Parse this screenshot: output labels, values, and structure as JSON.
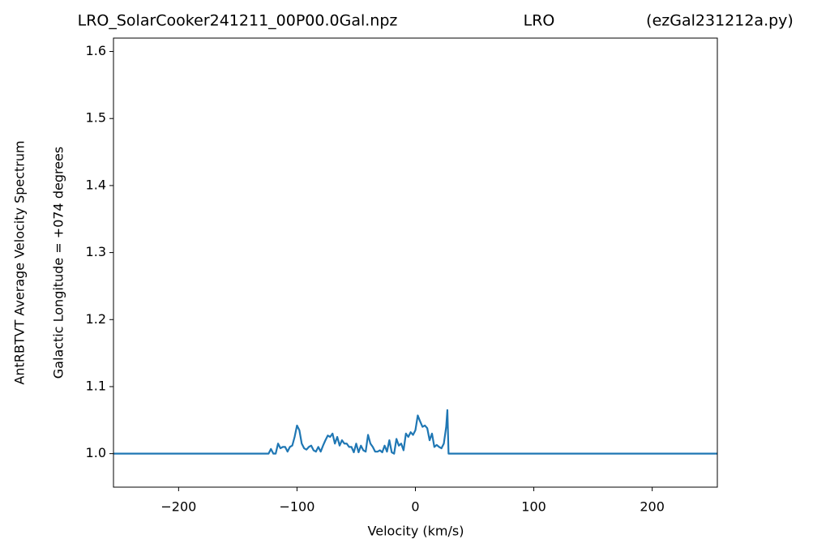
{
  "chart_data": {
    "type": "line",
    "title": [
      "LRO_SolarCooker241211_00P00.0Gal.npz",
      "LRO",
      "(ezGal231212a.py)"
    ],
    "ylabel": [
      "AntRBTVT Average Velocity Spectrum",
      "Galactic Longitude = +074 degrees"
    ],
    "xlabel": "Velocity (km/s)",
    "xlim": [
      -255,
      255
    ],
    "xticks": [
      {
        "value": -200,
        "label": "−200"
      },
      {
        "value": -100,
        "label": "−100"
      },
      0,
      100,
      200
    ],
    "ylim": [
      0.95,
      1.62
    ],
    "yticks": [
      {
        "value": 1,
        "label": "1.0"
      },
      1.1,
      1.2,
      1.3,
      1.4,
      1.5,
      1.6
    ],
    "series": [
      {
        "color": "#1f77b4",
        "x": [
          -255,
          -124,
          -122,
          -120,
          -118,
          -116,
          -114,
          -112,
          -110,
          -108,
          -106,
          -104,
          -102,
          -100,
          -98,
          -96,
          -94,
          -92,
          -90,
          -88,
          -86,
          -84,
          -82,
          -80,
          -78,
          -76,
          -74,
          -72,
          -70,
          -68,
          -66,
          -64,
          -62,
          -60,
          -58,
          -56,
          -54,
          -52,
          -50,
          -48,
          -46,
          -44,
          -42,
          -40,
          -38,
          -36,
          -34,
          -32,
          -30,
          -28,
          -26,
          -24,
          -22,
          -20,
          -18,
          -16,
          -14,
          -12,
          -10,
          -8,
          -6,
          -4,
          -2,
          0,
          2,
          4,
          6,
          8,
          10,
          12,
          14,
          16,
          18,
          20,
          22,
          24,
          26,
          27,
          28,
          255
        ],
        "values": [
          1.0,
          1.0,
          1.007,
          1.0,
          1.0,
          1.015,
          1.008,
          1.01,
          1.01,
          1.003,
          1.01,
          1.012,
          1.025,
          1.042,
          1.035,
          1.015,
          1.008,
          1.006,
          1.01,
          1.012,
          1.005,
          1.003,
          1.01,
          1.003,
          1.012,
          1.02,
          1.027,
          1.025,
          1.03,
          1.015,
          1.025,
          1.012,
          1.02,
          1.015,
          1.015,
          1.01,
          1.01,
          1.002,
          1.015,
          1.002,
          1.012,
          1.005,
          1.003,
          1.028,
          1.015,
          1.01,
          1.003,
          1.003,
          1.005,
          1.002,
          1.012,
          1.003,
          1.02,
          1.002,
          1.0,
          1.022,
          1.012,
          1.015,
          1.005,
          1.03,
          1.025,
          1.032,
          1.028,
          1.035,
          1.057,
          1.048,
          1.04,
          1.042,
          1.038,
          1.02,
          1.03,
          1.01,
          1.013,
          1.01,
          1.008,
          1.015,
          1.04,
          1.065,
          1.0,
          1.0
        ]
      }
    ]
  }
}
